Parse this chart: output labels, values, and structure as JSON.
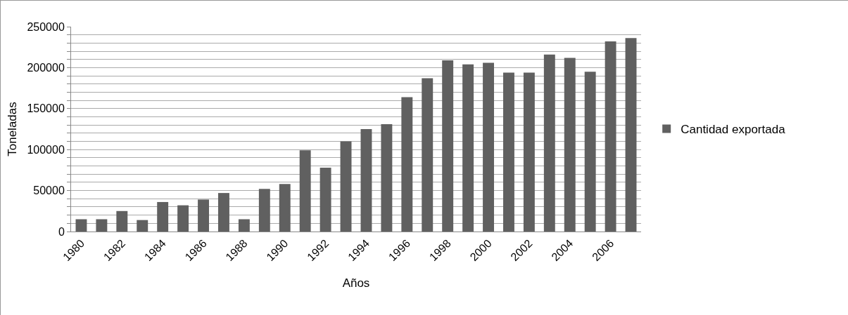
{
  "chart_data": {
    "type": "bar",
    "xlabel": "Años",
    "ylabel": "Toneladas",
    "categories": [
      "1980",
      null,
      "1982",
      null,
      "1984",
      null,
      "1986",
      null,
      "1988",
      null,
      "1990",
      null,
      "1992",
      null,
      "1994",
      null,
      "1996",
      null,
      "1998",
      null,
      "2000",
      null,
      "2002",
      null,
      "2004",
      null,
      "2006",
      null
    ],
    "series": [
      {
        "name": "Cantidad exportada",
        "color": "#606060",
        "values": [
          15000,
          15000,
          25000,
          14000,
          36000,
          32000,
          39000,
          47000,
          15000,
          52000,
          58000,
          99000,
          78000,
          110000,
          125000,
          131000,
          164000,
          187000,
          209000,
          204000,
          206000,
          194000,
          194000,
          216000,
          212000,
          195000,
          232000,
          236000
        ]
      }
    ],
    "ylim": [
      0,
      250000
    ],
    "yticks": [
      0,
      {
        "value": 10000,
        "label": null
      },
      {
        "value": 20000,
        "label": null
      },
      {
        "value": 30000,
        "label": null
      },
      {
        "value": 40000,
        "label": null
      },
      50000,
      {
        "value": 60000,
        "label": null
      },
      {
        "value": 70000,
        "label": null
      },
      {
        "value": 80000,
        "label": null
      },
      {
        "value": 90000,
        "label": null
      },
      100000,
      {
        "value": 110000,
        "label": null
      },
      {
        "value": 120000,
        "label": null
      },
      {
        "value": 130000,
        "label": null
      },
      {
        "value": 140000,
        "label": null
      },
      150000,
      {
        "value": 160000,
        "label": null
      },
      {
        "value": 170000,
        "label": null
      },
      {
        "value": 180000,
        "label": null
      },
      {
        "value": 190000,
        "label": null
      },
      200000,
      {
        "value": 210000,
        "label": null
      },
      {
        "value": 220000,
        "label": null
      },
      {
        "value": 230000,
        "label": null
      },
      {
        "value": 240000,
        "label": null
      },
      250000
    ],
    "grid": "y",
    "legend": "right"
  }
}
